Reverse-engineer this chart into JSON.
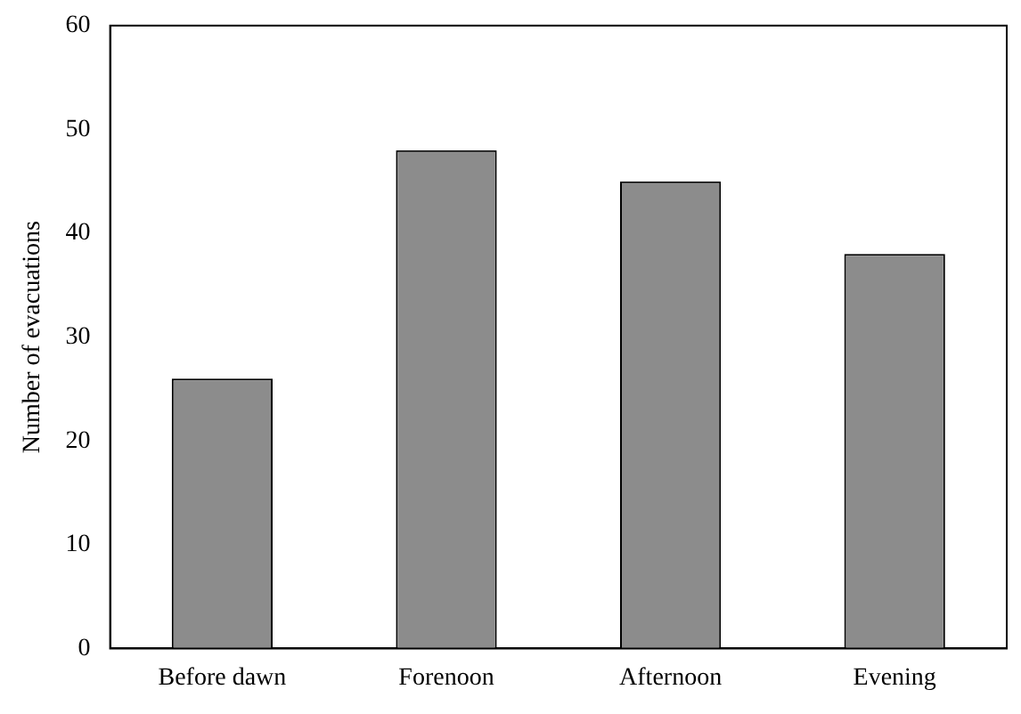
{
  "chart_data": {
    "type": "bar",
    "ylabel": "Number of evacuations",
    "categories": [
      "Before dawn",
      "Forenoon",
      "Afternoon",
      "Evening"
    ],
    "values": [
      26,
      48,
      45,
      38
    ],
    "color": "#8c8c8c",
    "ylim": [
      0,
      60
    ],
    "yticks": [
      0,
      10,
      20,
      30,
      40,
      50,
      60
    ],
    "grid": false,
    "legend": false
  }
}
